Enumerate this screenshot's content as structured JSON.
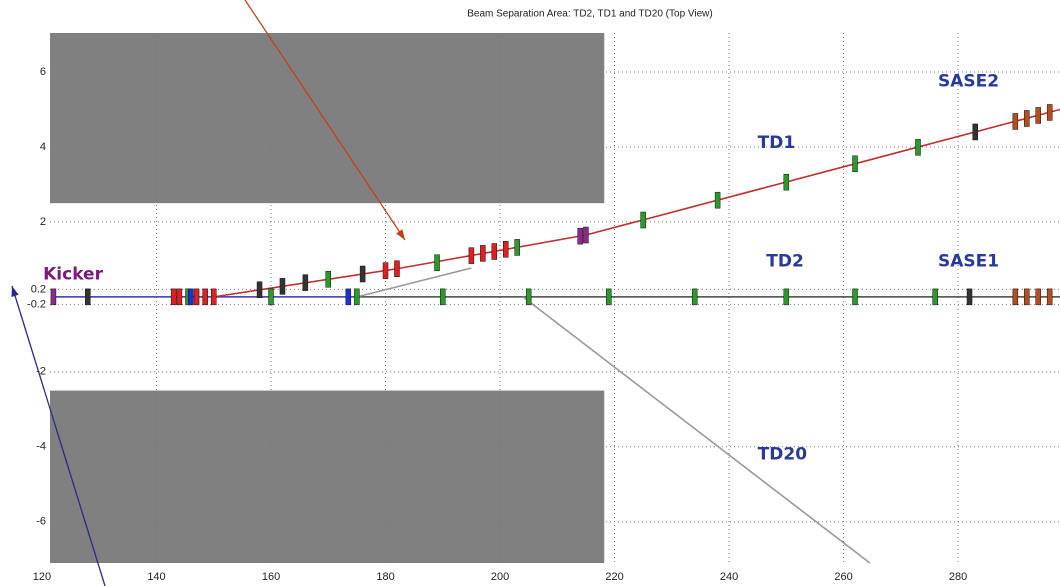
{
  "chart_data": {
    "type": "scatter",
    "title": "Beam Separation Area: TD2, TD1 and TD20 (Top View)",
    "xlim": [
      121.4,
      297.8
    ],
    "ylim": [
      -7.1,
      7.04
    ],
    "xticks": [
      120,
      140,
      160,
      180,
      200,
      220,
      240,
      260,
      280
    ],
    "yticks": [
      6,
      4,
      2,
      0.2,
      -0.2,
      -2,
      -4,
      -6
    ],
    "grid": true,
    "regions": [
      {
        "x": [
          121.4,
          218.2
        ],
        "y": [
          2.5,
          7.04
        ],
        "color": "#808080"
      },
      {
        "x": [
          121.4,
          218.2
        ],
        "y": [
          -7.1,
          -2.5
        ],
        "color": "#808080"
      }
    ],
    "lines": [
      {
        "color": "#444444",
        "x": [
          175,
          297.8
        ],
        "y": [
          0,
          0
        ]
      },
      {
        "color": "#3030c0",
        "x": [
          122,
          175
        ],
        "y": [
          0,
          0
        ]
      },
      {
        "color": "#999999",
        "x": [
          175,
          195
        ],
        "y": [
          0,
          0.77
        ]
      },
      {
        "color": "#999999",
        "x": [
          204,
          264.6
        ],
        "y": [
          0,
          -7.1
        ]
      },
      {
        "color": "#c03030",
        "x": [
          150,
          182,
          215,
          297.8
        ],
        "y": [
          0,
          0.75,
          1.65,
          5.0
        ]
      }
    ],
    "series": [
      {
        "color": "#2a9a2a",
        "x": [
          160,
          175,
          190,
          205,
          219,
          234,
          250,
          262,
          276,
          145.5,
          170,
          189,
          203,
          225,
          238,
          250,
          262,
          273
        ],
        "y": [
          0,
          0,
          0,
          0,
          0,
          0,
          0,
          0,
          0,
          0,
          0.47,
          0.91,
          1.32,
          2.05,
          2.58,
          3.06,
          3.55,
          3.99
        ]
      },
      {
        "color": "#e02020",
        "x": [
          143,
          144,
          147,
          148.5,
          150,
          180,
          182,
          195,
          197,
          199,
          201
        ],
        "y": [
          0,
          0,
          0,
          0,
          0,
          0.7,
          0.75,
          1.1,
          1.16,
          1.21,
          1.27
        ]
      },
      {
        "color": "#2030d0",
        "x": [
          146,
          173.5
        ],
        "y": [
          0,
          0
        ]
      },
      {
        "color": "#333333",
        "x": [
          128,
          282,
          158,
          162,
          166,
          176,
          283
        ],
        "y": [
          0,
          0,
          0.19,
          0.28,
          0.38,
          0.61,
          4.4
        ]
      },
      {
        "color": "#8a2a8a",
        "x": [
          122,
          214,
          215
        ],
        "y": [
          0,
          1.62,
          1.65
        ]
      },
      {
        "color": "#b05020",
        "x": [
          290,
          292,
          294,
          296,
          290,
          292,
          294,
          296
        ],
        "y": [
          0,
          0,
          0,
          0,
          4.68,
          4.76,
          4.84,
          4.92
        ]
      }
    ],
    "annotations": [
      {
        "text": "Kicker",
        "x": 120.2,
        "y": 0.6,
        "color": "#7a1a7a"
      },
      {
        "text": "TD1",
        "x": 245,
        "y": 4.1,
        "color": "#2a3a9a"
      },
      {
        "text": "TD2",
        "x": 246.5,
        "y": 0.95,
        "color": "#2a3a9a"
      },
      {
        "text": "SASE2",
        "x": 276.5,
        "y": 5.75,
        "color": "#2a3a9a"
      },
      {
        "text": "SASE1",
        "x": 276.5,
        "y": 0.95,
        "color": "#2a3a9a"
      },
      {
        "text": "TD20",
        "x": 245,
        "y": -4.2,
        "color": "#2a3a9a"
      }
    ]
  }
}
